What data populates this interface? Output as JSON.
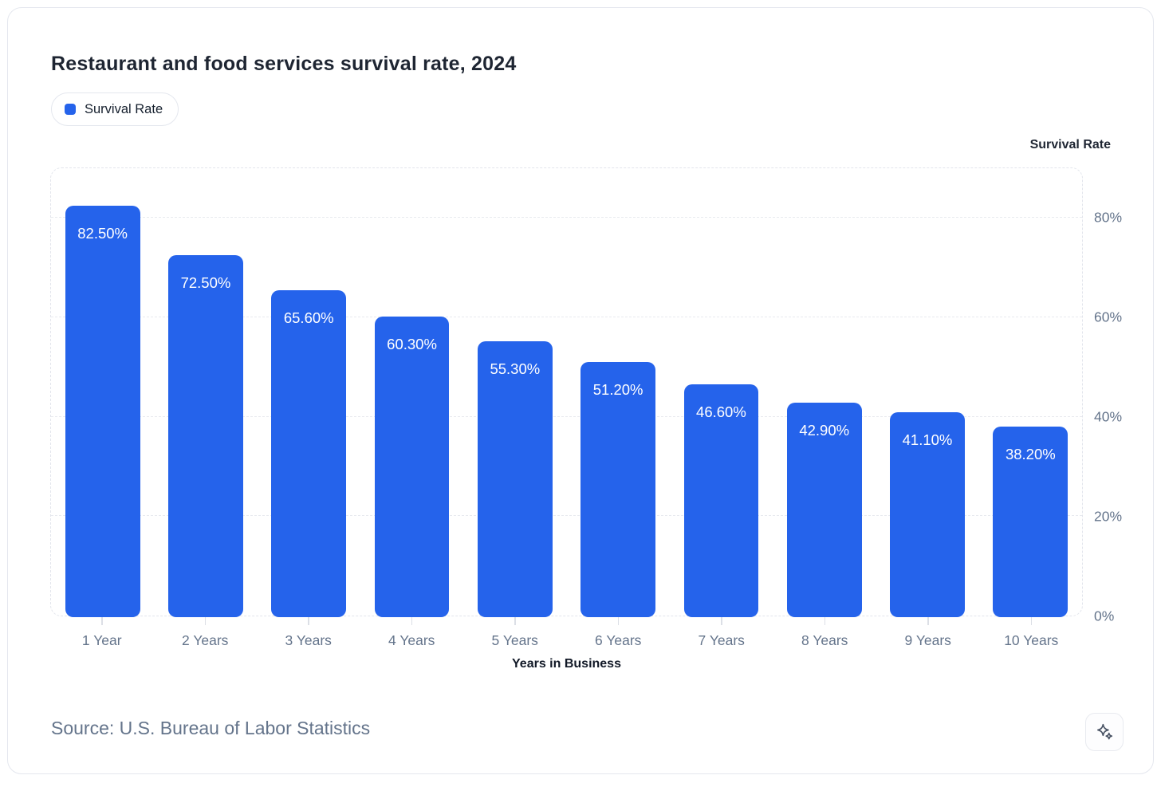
{
  "card": {
    "source": "Source: U.S. Bureau of Labor Statistics"
  },
  "legend": {
    "label": "Survival Rate"
  },
  "colors": {
    "bar": "#2563eb",
    "accent": "#2563eb",
    "axis_text": "#64748b",
    "title_text": "#1e2532",
    "bar_label_text": "#ffffff"
  },
  "icons": {
    "legend_swatch": "rounded-square",
    "ai_action": "sparkles"
  },
  "chart_data": {
    "type": "bar",
    "title": "Restaurant and food services survival rate, 2024",
    "series_name": "Survival Rate",
    "categories": [
      "1 Year",
      "2 Years",
      "3 Years",
      "4 Years",
      "5 Years",
      "6 Years",
      "7 Years",
      "8 Years",
      "9 Years",
      "10 Years"
    ],
    "values": [
      82.5,
      72.5,
      65.6,
      60.3,
      55.3,
      51.2,
      46.6,
      42.9,
      41.1,
      38.2
    ],
    "value_labels": [
      "82.50%",
      "72.50%",
      "65.60%",
      "60.30%",
      "55.30%",
      "51.20%",
      "46.60%",
      "42.90%",
      "41.10%",
      "38.20%"
    ],
    "xlabel": "Years in Business",
    "ylabel": "Survival Rate",
    "ylim": [
      0,
      90
    ],
    "ytick_values": [
      0,
      20,
      40,
      60,
      80
    ],
    "ytick_labels": [
      "0%",
      "20%",
      "40%",
      "60%",
      "80%"
    ],
    "grid": "horizontal-dashed",
    "legend_position": "top-left",
    "yaxis_side": "right",
    "bar_color": "#2563eb"
  }
}
